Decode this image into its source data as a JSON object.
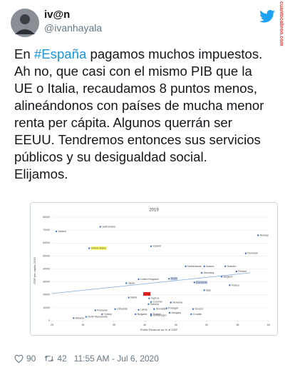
{
  "tweet": {
    "name": "iv@n",
    "handle": "@ivanhayala",
    "text_start": "En ",
    "hashtag": "#España",
    "text_rest": " pagamos muchos impuestos. Ah no, que casi con el mismo PIB que la UE o Italia, recaudamos 8 puntos menos, alineándonos con países de mucha menor renta per cápita. Algunos querrán ser EEUU. Tendremos entonces sus servicios públicos y su desigualdad social.\nElijamos.",
    "likes": "90",
    "retweets": "42",
    "timestamp": "11:55 AM - Jul 6, 2020",
    "watermark": "cuantocabron.com"
  },
  "chart_data": {
    "type": "scatter",
    "title": "2019",
    "x_label": "Public Revenue as % of GDP",
    "y_label": "GDP per capita 2019",
    "xlim": [
      25,
      60
    ],
    "xticks": [
      25,
      30,
      35,
      40,
      45,
      50,
      55,
      60
    ],
    "ylim": [
      0,
      80000
    ],
    "yticks": [
      0,
      10000,
      20000,
      30000,
      40000,
      50000,
      60000,
      70000,
      80000
    ],
    "color": "#4472c4",
    "point_labels": [
      "Ireland",
      "Switzerland",
      "Norway",
      "United States",
      "Iceland",
      "Denmark",
      "Netherlands",
      "Austria",
      "Sweden",
      "Finland",
      "Germany",
      "Belgium",
      "United Kingdom",
      "Japan",
      "EU15",
      "Eurozone",
      "France",
      null,
      "Italy",
      "Malta",
      "Cyprus",
      "Slovenia",
      "Czechia",
      "Estonia",
      "Portugal",
      "Lithuania",
      "Latvia",
      "Slovakia",
      "Greece",
      "Poland",
      "Hungary",
      "Croatia",
      "Romania",
      "Turkey",
      "North Macedonia",
      "Albania",
      "Bulgaria",
      "Montenegro"
    ],
    "point_highlights": [
      null,
      null,
      null,
      "#ffff66",
      null,
      null,
      null,
      null,
      null,
      null,
      null,
      null,
      null,
      null,
      "#c5d3ee",
      "#c5d3ee",
      null,
      "#e02020",
      null,
      null,
      null,
      null,
      null,
      null,
      null,
      null,
      null,
      null,
      null,
      null,
      null,
      null,
      null,
      null,
      null,
      null,
      null,
      null
    ],
    "x": [
      25.7,
      32.8,
      58.3,
      31,
      41,
      56.3,
      46.6,
      49.6,
      53,
      54.8,
      49.2,
      52.4,
      39,
      37,
      43.9,
      48,
      53.7,
      40.2,
      49.6,
      37.4,
      40.7,
      44.2,
      41,
      40.6,
      43.5,
      35.2,
      39,
      41.5,
      47.8,
      41,
      44,
      47.5,
      32,
      33.1,
      30.5,
      28.5,
      38.5,
      41
    ],
    "values": [
      69000,
      72600,
      66000,
      56000,
      57500,
      52000,
      42000,
      42000,
      42000,
      38000,
      37000,
      34000,
      32000,
      29000,
      32400,
      29600,
      27400,
      20700,
      23500,
      17900,
      17300,
      14000,
      14500,
      12800,
      9500,
      9000,
      8400,
      9000,
      9000,
      5000,
      6100,
      5000,
      8000,
      5000,
      3000,
      2000,
      5000,
      4000
    ],
    "trend_x": [
      25,
      57
    ],
    "trend_values": [
      21000,
      37000
    ]
  }
}
